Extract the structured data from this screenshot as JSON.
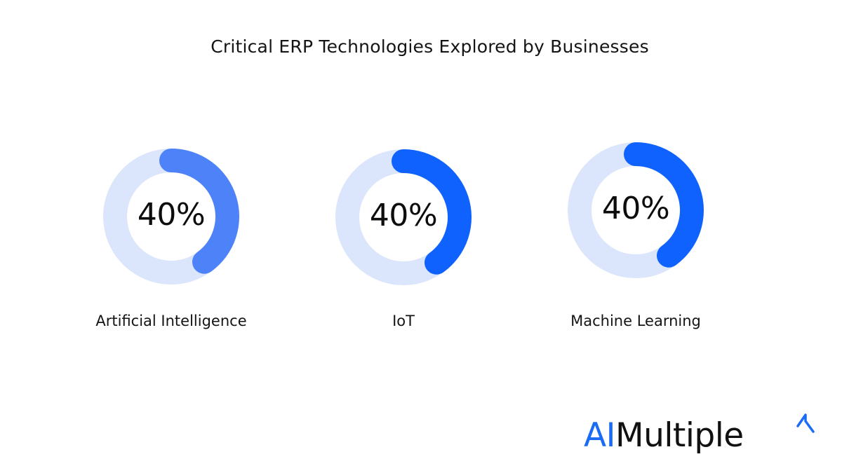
{
  "chart_data": {
    "type": "donut",
    "title": "Critical ERP Technologies Explored by Businesses",
    "categories": [
      "Artificial Intelligence",
      "IoT",
      "Machine Learning"
    ],
    "values": [
      40,
      40,
      40
    ],
    "value_labels": [
      "40%",
      "40%",
      "40%"
    ],
    "unit": "%",
    "max": 100,
    "colors": {
      "track": "#dbe5fb",
      "series": [
        "#4d82f9",
        "#0f62fe",
        "#0f62fe"
      ]
    }
  },
  "brand": {
    "ai": "AI",
    "rest": "Multiple",
    "colors": {
      "accent": "#1a6cf5",
      "text": "#111111"
    }
  }
}
